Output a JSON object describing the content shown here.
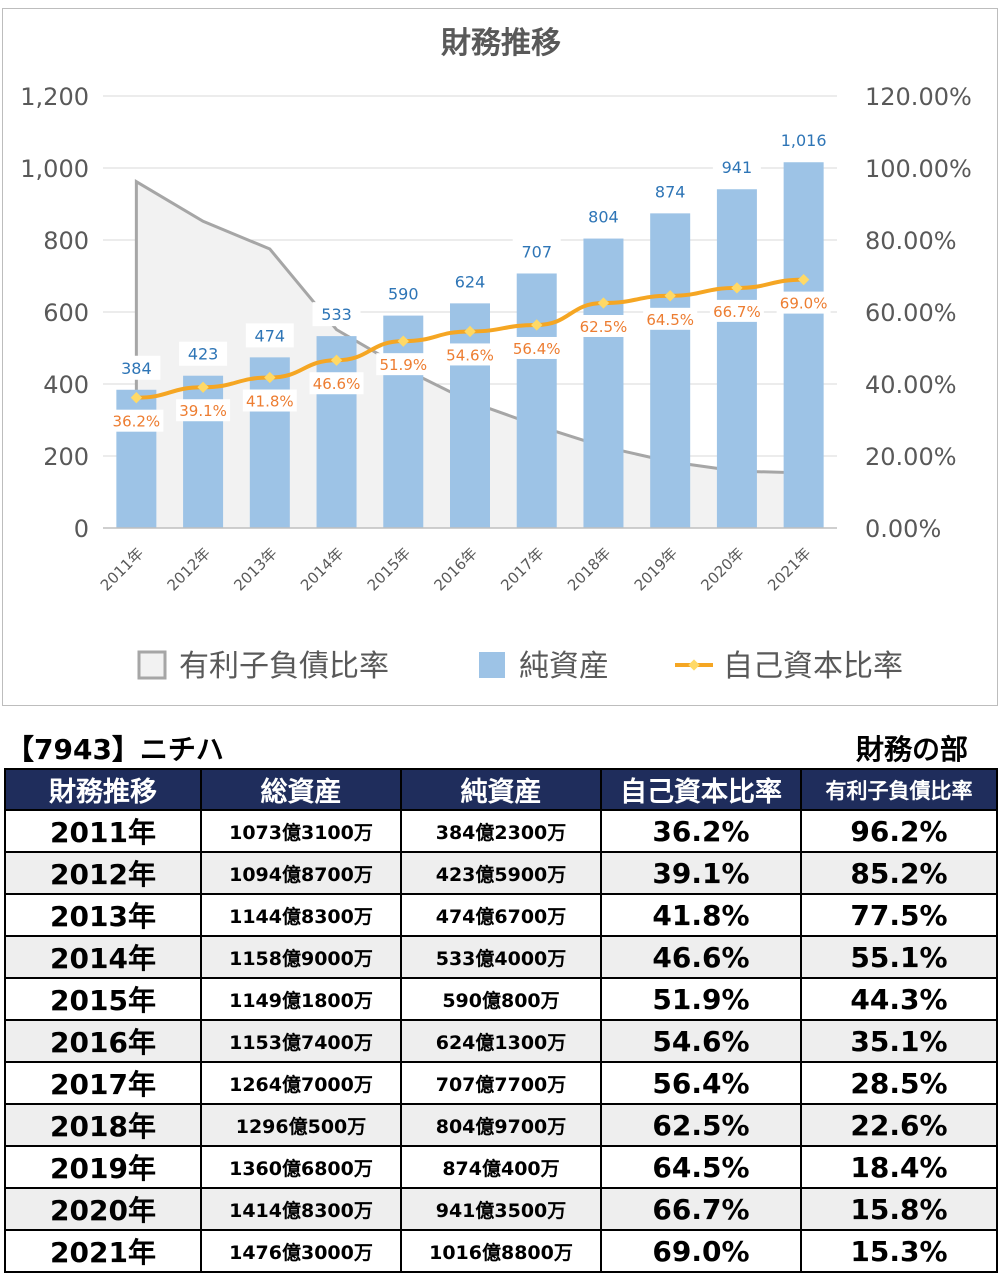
{
  "chart_data": {
    "type": "bar",
    "title": "財務推移",
    "categories": [
      "2011年",
      "2012年",
      "2013年",
      "2014年",
      "2015年",
      "2016年",
      "2017年",
      "2018年",
      "2019年",
      "2020年",
      "2021年"
    ],
    "series": [
      {
        "name": "有利子負債比率",
        "type": "area",
        "axis": "right",
        "color": "#a6a6a6",
        "fill": "#f2f2f2",
        "values": [
          0.962,
          0.852,
          0.775,
          0.551,
          0.443,
          0.351,
          0.285,
          0.226,
          0.184,
          0.158,
          0.153
        ]
      },
      {
        "name": "純資産",
        "type": "bar",
        "axis": "left",
        "color": "#9dc3e6",
        "values": [
          384,
          423,
          474,
          533,
          590,
          624,
          707,
          804,
          874,
          941,
          1016
        ],
        "labels": [
          "384",
          "423",
          "474",
          "533",
          "590",
          "624",
          "707",
          "804",
          "874",
          "941",
          "1,016"
        ]
      },
      {
        "name": "自己資本比率",
        "type": "line",
        "axis": "right",
        "color": "#f5a623",
        "marker_color": "#ffd966",
        "values": [
          0.362,
          0.391,
          0.418,
          0.466,
          0.519,
          0.546,
          0.564,
          0.625,
          0.645,
          0.667,
          0.69
        ],
        "labels": [
          "36.2%",
          "39.1%",
          "41.8%",
          "46.6%",
          "51.9%",
          "54.6%",
          "56.4%",
          "62.5%",
          "64.5%",
          "66.7%",
          "69.0%"
        ]
      }
    ],
    "ylim": [
      0,
      1200
    ],
    "y_ticks": [
      "0",
      "200",
      "400",
      "600",
      "800",
      "1,000",
      "1,200"
    ],
    "y2lim": [
      0,
      1.2
    ],
    "y2_ticks": [
      "0.00%",
      "20.00%",
      "40.00%",
      "60.00%",
      "80.00%",
      "100.00%",
      "120.00%"
    ],
    "grid": true,
    "legend_position": "bottom"
  },
  "table": {
    "company_code": "【7943】ニチハ",
    "section_label": "財務の部",
    "headers": [
      "財務推移",
      "総資産",
      "純資産",
      "自己資本比率",
      "有利子負債比率"
    ],
    "rows": [
      [
        "2011年",
        "1073億3100万",
        "384億2300万",
        "36.2%",
        "96.2%"
      ],
      [
        "2012年",
        "1094億8700万",
        "423億5900万",
        "39.1%",
        "85.2%"
      ],
      [
        "2013年",
        "1144億8300万",
        "474億6700万",
        "41.8%",
        "77.5%"
      ],
      [
        "2014年",
        "1158億9000万",
        "533億4000万",
        "46.6%",
        "55.1%"
      ],
      [
        "2015年",
        "1149億1800万",
        "590億800万",
        "51.9%",
        "44.3%"
      ],
      [
        "2016年",
        "1153億7400万",
        "624億1300万",
        "54.6%",
        "35.1%"
      ],
      [
        "2017年",
        "1264億7000万",
        "707億7700万",
        "56.4%",
        "28.5%"
      ],
      [
        "2018年",
        "1296億500万",
        "804億9700万",
        "62.5%",
        "22.6%"
      ],
      [
        "2019年",
        "1360億6800万",
        "874億400万",
        "64.5%",
        "18.4%"
      ],
      [
        "2020年",
        "1414億8300万",
        "941億3500万",
        "66.7%",
        "15.8%"
      ],
      [
        "2021年",
        "1476億3000万",
        "1016億8800万",
        "69.0%",
        "15.3%"
      ]
    ]
  }
}
